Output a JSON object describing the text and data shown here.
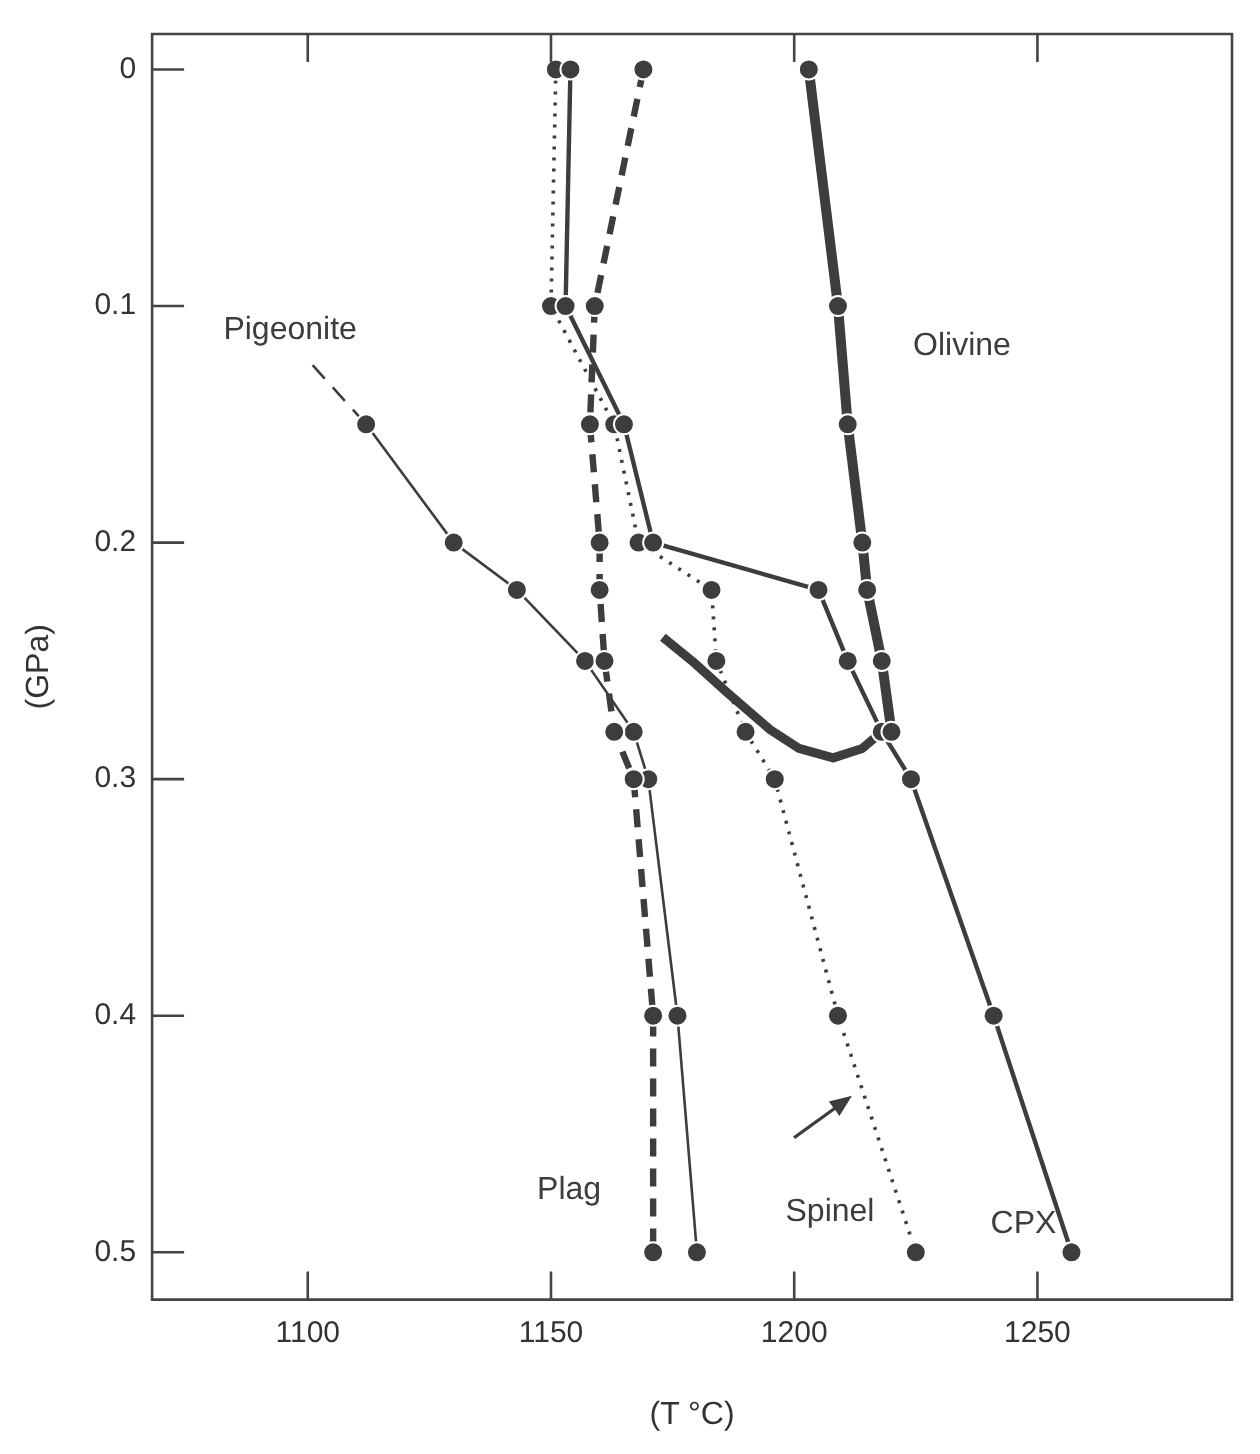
{
  "chart_data": {
    "type": "line",
    "xlabel": "(T °C)",
    "ylabel": "(GPa)",
    "xlim": [
      1068,
      1290
    ],
    "xticks": [
      1100,
      1150,
      1200,
      1250
    ],
    "ylim": [
      0.52,
      -0.015
    ],
    "yticks": [
      0,
      0.1,
      0.2,
      0.3,
      0.4,
      0.5
    ],
    "marker": "circle",
    "line_style": "solid",
    "legend": false,
    "grid": false,
    "series": [
      {
        "name": "Olivine",
        "color": "#3d3d3d",
        "x": [
          1203,
          1209,
          1211,
          1214,
          1215,
          1218,
          1220
        ],
        "values": [
          0,
          0.1,
          0.15,
          0.2,
          0.22,
          0.25,
          0.28
        ]
      },
      {
        "name": "CPX",
        "color": "#3d3d3d",
        "x": [
          1154,
          1153,
          1165,
          1171,
          1205,
          1211,
          1218,
          1224,
          1241,
          1257
        ],
        "values": [
          0,
          0.1,
          0.15,
          0.2,
          0.22,
          0.25,
          0.28,
          0.3,
          0.4,
          0.5
        ]
      },
      {
        "name": "Spinel",
        "color": "#3d3d3d",
        "line_style": "dotted",
        "x": [
          1151,
          1150,
          1163,
          1168,
          1183,
          1184,
          1190,
          1196,
          1209,
          1225
        ],
        "values": [
          0,
          0.1,
          0.15,
          0.2,
          0.22,
          0.25,
          0.28,
          0.3,
          0.4,
          0.5
        ]
      },
      {
        "name": "Plag",
        "color": "#3d3d3d",
        "line_style": "dashed",
        "x": [
          1169,
          1159,
          1158,
          1160,
          1160,
          1161,
          1163,
          1167,
          1171,
          1171
        ],
        "values": [
          0,
          0.1,
          0.15,
          0.2,
          0.22,
          0.25,
          0.28,
          0.3,
          0.4,
          0.5
        ]
      },
      {
        "name": "Pigeonite",
        "color": "#3d3d3d",
        "x": [
          1112,
          1130,
          1143,
          1157,
          1167,
          1170,
          1176,
          1180
        ],
        "values": [
          0.15,
          0.2,
          0.22,
          0.25,
          0.28,
          0.3,
          0.4,
          0.5
        ]
      },
      {
        "color": "#3d3d3d",
        "line_style": "dashed",
        "marker": "none",
        "x": [
          1101,
          1112
        ],
        "values": [
          0.125,
          0.15
        ]
      },
      {
        "color": "#3d3d3d",
        "marker": "none",
        "x": [
          1173,
          1179,
          1186,
          1195,
          1201,
          1208,
          1214,
          1218
        ],
        "values": [
          0.24,
          0.25,
          0.263,
          0.279,
          0.287,
          0.291,
          0.287,
          0.28
        ]
      }
    ]
  }
}
